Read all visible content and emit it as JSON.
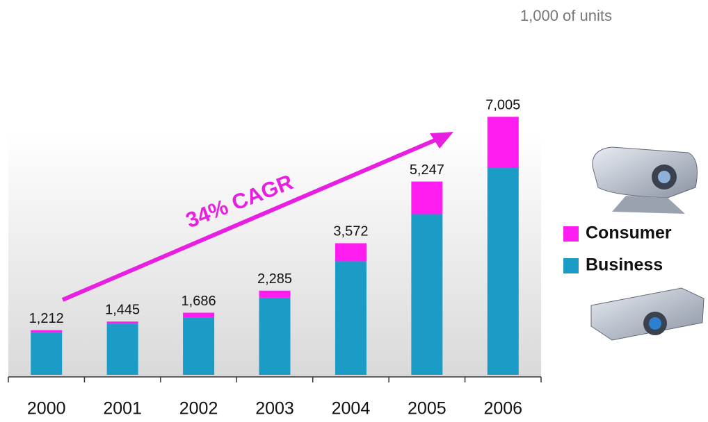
{
  "chart_data": {
    "type": "stacked-bar",
    "subtitle": "1,000 of units",
    "annotation": "34% CAGR",
    "categories": [
      "2000",
      "2001",
      "2002",
      "2003",
      "2004",
      "2005",
      "2006"
    ],
    "series": [
      {
        "name": "Business",
        "color": "#1a9cc6",
        "values": [
          1156,
          1389,
          1556,
          2095,
          3082,
          4362,
          5615
        ]
      },
      {
        "name": "Consumer",
        "color": "#ff1cf0",
        "values": [
          56,
          56,
          130,
          190,
          490,
          885,
          1390
        ]
      }
    ],
    "totals": [
      1212,
      1445,
      1686,
      2285,
      3572,
      5247,
      7005
    ],
    "total_labels": [
      "1,212",
      "1,445",
      "1,686",
      "2,285",
      "3,572",
      "5,247",
      "7,005"
    ],
    "ylim": [
      0,
      7500
    ],
    "legend": "right"
  }
}
